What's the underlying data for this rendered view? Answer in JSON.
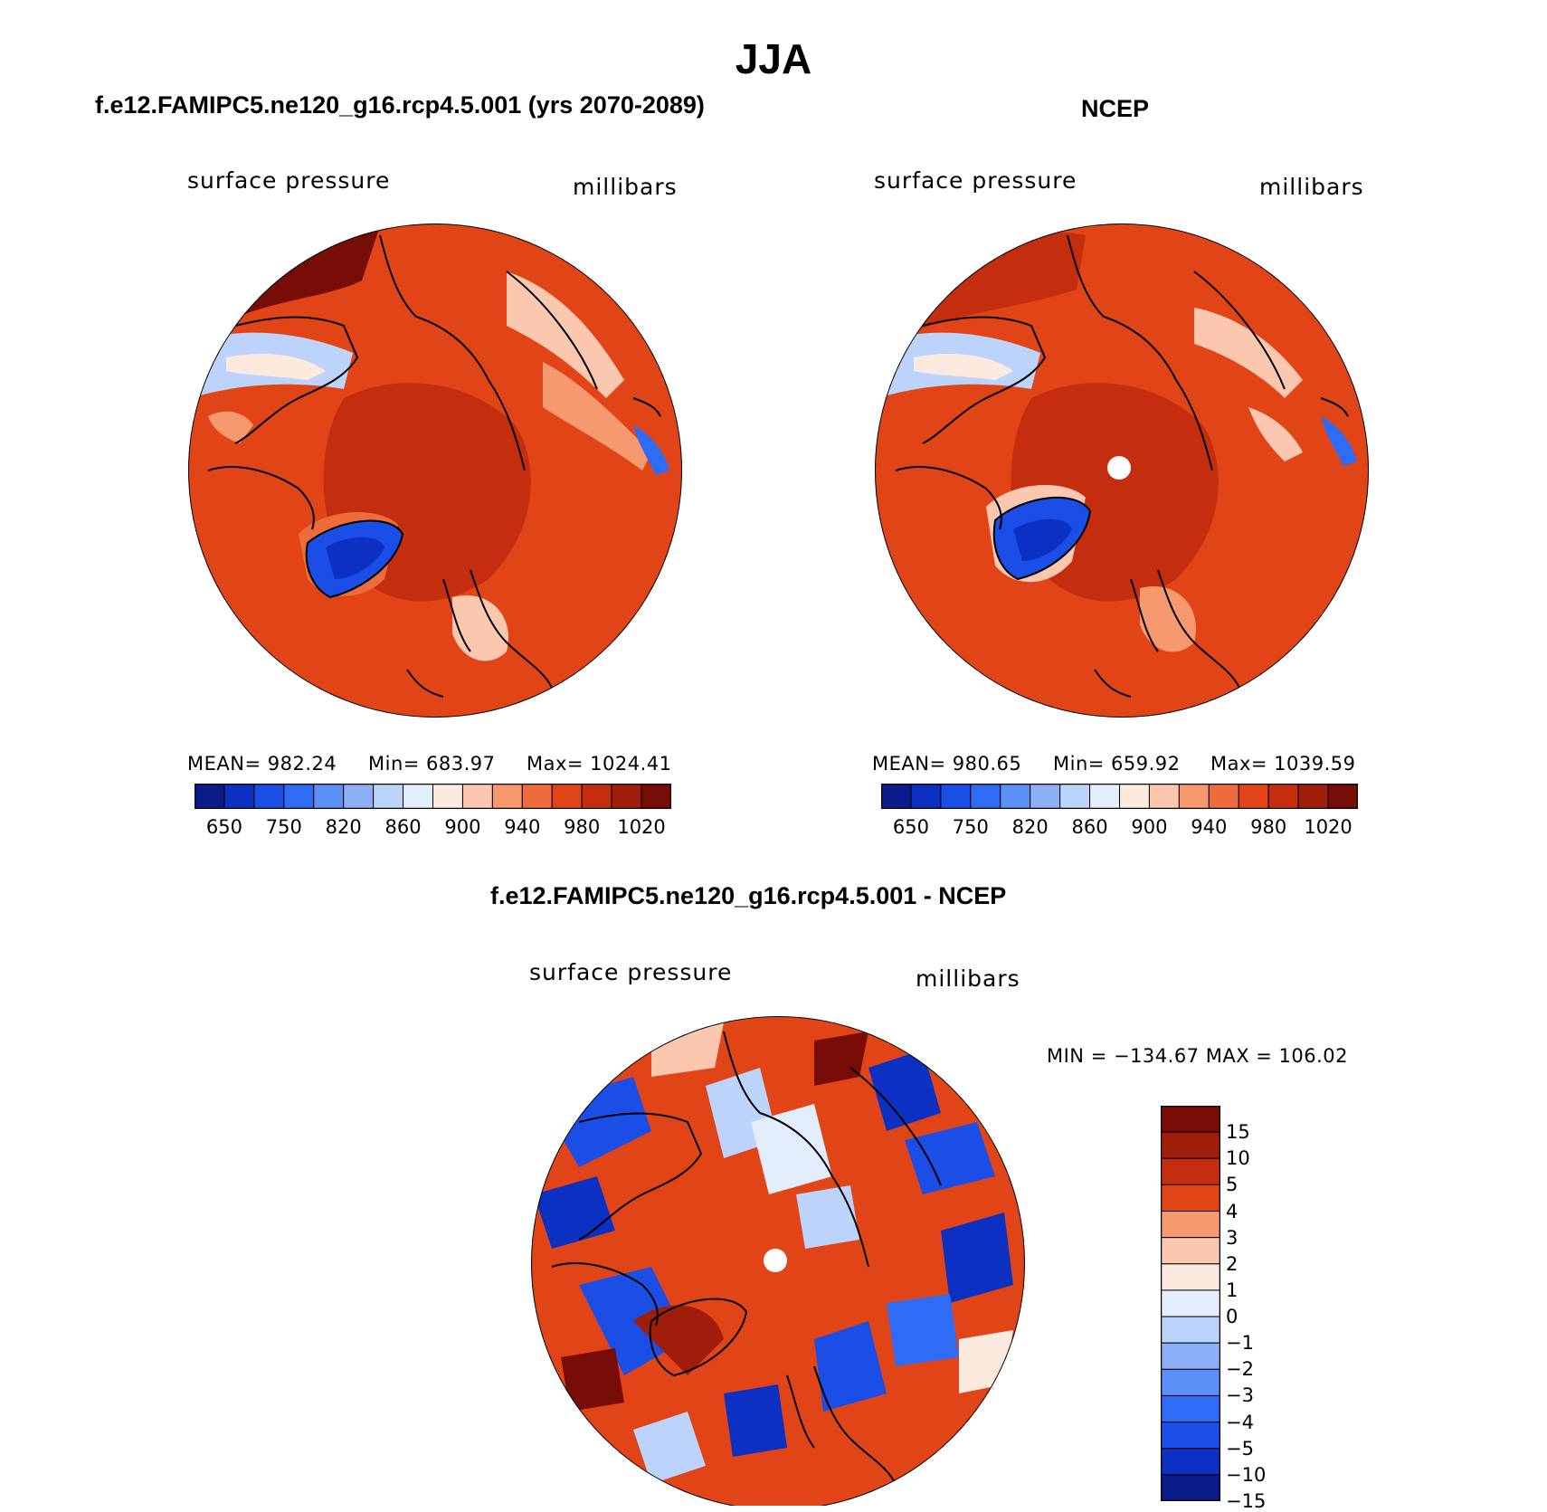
{
  "title": "JJA",
  "colors": {
    "abs_scale": [
      "#0a1b8a",
      "#0c31c2",
      "#1a4ee6",
      "#2f6cf5",
      "#5b8ef7",
      "#8cb0f8",
      "#bcd3fb",
      "#e2eefc",
      "#fdeadf",
      "#fbc8af",
      "#f6996e",
      "#ee6c3b",
      "#e14517",
      "#c42e0e",
      "#a01d0b",
      "#780d08"
    ],
    "diff_scale": [
      "#780d08",
      "#a01d0b",
      "#c42e0e",
      "#e14517",
      "#f6996e",
      "#fbc8af",
      "#fdeadf",
      "#e2eefc",
      "#bcd3fb",
      "#8cb0f8",
      "#5b8ef7",
      "#2f6cf5",
      "#1a4ee6",
      "#0c31c2",
      "#0a1b8a"
    ],
    "continent_outline": "#000000"
  },
  "panels": {
    "model": {
      "title": "f.e12.FAMIPC5.ne120_g16.rcp4.5.001 (yrs 2070-2089)",
      "left_label": "surface pressure",
      "right_label": "millibars",
      "stats": {
        "mean": "MEAN= 982.24",
        "min": "Min= 683.97",
        "max": "Max= 1024.41"
      },
      "colorbar_ticks": [
        "650",
        "750",
        "820",
        "860",
        "900",
        "940",
        "980",
        "1020"
      ]
    },
    "obs": {
      "title": "NCEP",
      "left_label": "surface pressure",
      "right_label": "millibars",
      "stats": {
        "mean": "MEAN= 980.65",
        "min": "Min= 659.92",
        "max": "Max= 1039.59"
      },
      "colorbar_ticks": [
        "650",
        "750",
        "820",
        "860",
        "900",
        "940",
        "980",
        "1020"
      ]
    },
    "diff": {
      "title": "f.e12.FAMIPC5.ne120_g16.rcp4.5.001 - NCEP",
      "left_label": "surface pressure",
      "right_label": "millibars",
      "minmax": "MIN = −134.67 MAX = 106.02",
      "colorbar_ticks": [
        "15",
        "10",
        "5",
        "4",
        "3",
        "2",
        "1",
        "0",
        "−1",
        "−2",
        "−3",
        "−4",
        "−5",
        "−10",
        "−15"
      ]
    }
  }
}
